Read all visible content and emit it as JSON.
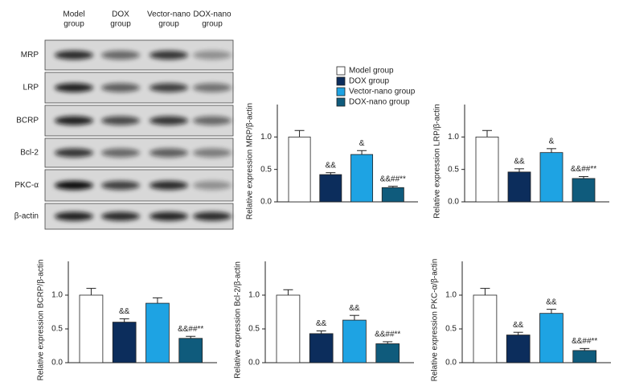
{
  "blot": {
    "columns": [
      [
        "Model",
        "group"
      ],
      [
        "DOX",
        "group"
      ],
      [
        "Vector-nano",
        "group"
      ],
      [
        "DOX-nano",
        "group"
      ]
    ],
    "rows": [
      "MRP",
      "LRP",
      "BCRP",
      "Bcl-2",
      "PKC-α",
      "β-actin"
    ]
  },
  "legend": {
    "names": [
      "Model group",
      "DOX group",
      "Vector-nano group",
      "DOX-nano group"
    ],
    "colors": [
      "#ffffff",
      "#0c2d5c",
      "#1ea3e3",
      "#0f5b7c"
    ]
  },
  "chart_data": [
    {
      "type": "bar",
      "ylabel": "Relative expression MRP/β-actin",
      "values": [
        1.0,
        0.42,
        0.73,
        0.22
      ],
      "errors": [
        0.1,
        0.03,
        0.06,
        0.02
      ],
      "annotations": [
        null,
        "&&",
        "&",
        "&&##**"
      ],
      "ylim": [
        0,
        1.5
      ],
      "yticks": [
        {
          "value": 0,
          "label": "0.0"
        },
        {
          "value": 0.5,
          "label": "0.5"
        },
        {
          "value": 1,
          "label": "1.0"
        }
      ]
    },
    {
      "type": "bar",
      "ylabel": "Relative expression LRP/β-actin",
      "values": [
        1.0,
        0.46,
        0.76,
        0.36
      ],
      "errors": [
        0.1,
        0.05,
        0.06,
        0.03
      ],
      "annotations": [
        null,
        "&&",
        "&",
        "&&##**"
      ],
      "ylim": [
        0,
        1.5
      ],
      "yticks": [
        {
          "value": 0,
          "label": "0.0"
        },
        {
          "value": 0.5,
          "label": "0.5"
        },
        {
          "value": 1,
          "label": "1.0"
        }
      ]
    },
    {
      "type": "bar",
      "ylabel": "Relative expression BCRP/β-actin",
      "values": [
        1.0,
        0.6,
        0.88,
        0.36
      ],
      "errors": [
        0.1,
        0.05,
        0.08,
        0.03
      ],
      "annotations": [
        null,
        "&&",
        null,
        "&&##**"
      ],
      "ylim": [
        0,
        1.5
      ],
      "yticks": [
        {
          "value": 0,
          "label": "0.0"
        },
        {
          "value": 0.5,
          "label": "0.5"
        },
        {
          "value": 1,
          "label": "1.0"
        }
      ]
    },
    {
      "type": "bar",
      "ylabel": "Relative expression Bcl-2/β-actin",
      "values": [
        1.0,
        0.43,
        0.63,
        0.28
      ],
      "errors": [
        0.08,
        0.04,
        0.07,
        0.03
      ],
      "annotations": [
        null,
        "&&",
        "&&",
        "&&##**"
      ],
      "ylim": [
        0,
        1.5
      ],
      "yticks": [
        {
          "value": 0,
          "label": "0.0"
        },
        {
          "value": 0.5,
          "label": "0.5"
        },
        {
          "value": 1,
          "label": "1.0"
        }
      ]
    },
    {
      "type": "bar",
      "ylabel": "Relative expression PKC-α/β-actin",
      "values": [
        1.0,
        0.41,
        0.73,
        0.18
      ],
      "errors": [
        0.1,
        0.04,
        0.06,
        0.03
      ],
      "annotations": [
        null,
        "&&",
        "&&",
        "&&##**"
      ],
      "ylim": [
        0,
        1.5
      ],
      "yticks": [
        {
          "value": 0,
          "label": "0.0"
        },
        {
          "value": 0.5,
          "label": "0.5"
        },
        {
          "value": 1,
          "label": "1.0"
        }
      ]
    }
  ]
}
